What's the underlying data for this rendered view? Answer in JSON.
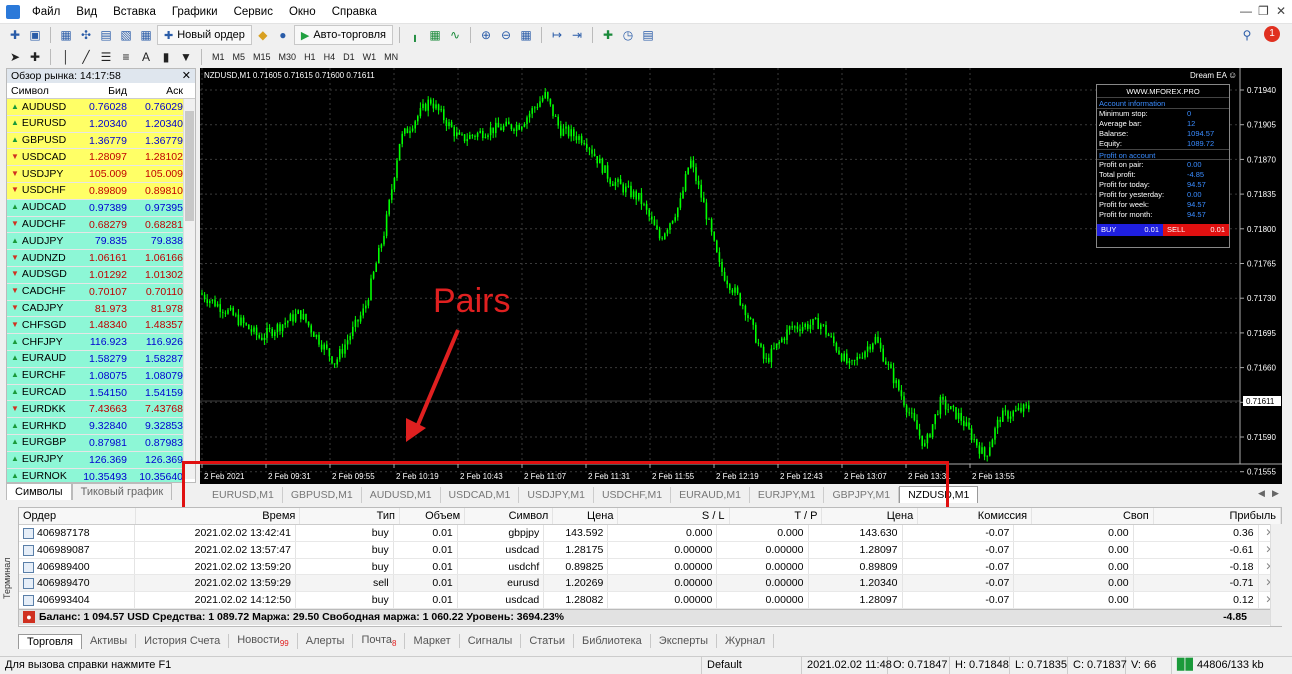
{
  "menu": [
    "Файл",
    "Вид",
    "Вставка",
    "Графики",
    "Сервис",
    "Окно",
    "Справка"
  ],
  "toolbar": {
    "new_order": "Новый ордер",
    "autotrading": "Авто-торговля",
    "timeframes": [
      "M1",
      "M5",
      "M15",
      "M30",
      "H1",
      "H4",
      "D1",
      "W1",
      "MN"
    ]
  },
  "market_watch": {
    "title": "Обзор рынка: 14:17:58",
    "headers": [
      "Символ",
      "Бид",
      "Аск"
    ],
    "rows": [
      {
        "symbol": "AUDUSD",
        "bid": "0.76028",
        "ask": "0.76029",
        "bg": "#ffff66",
        "dir": "up"
      },
      {
        "symbol": "EURUSD",
        "bid": "1.20340",
        "ask": "1.20340",
        "bg": "#ffff66",
        "dir": "up"
      },
      {
        "symbol": "GBPUSD",
        "bid": "1.36779",
        "ask": "1.36779",
        "bg": "#ffff66",
        "dir": "up"
      },
      {
        "symbol": "USDCAD",
        "bid": "1.28097",
        "ask": "1.28102",
        "bg": "#ffff66",
        "dir": "down"
      },
      {
        "symbol": "USDJPY",
        "bid": "105.009",
        "ask": "105.009",
        "bg": "#ffff66",
        "dir": "down"
      },
      {
        "symbol": "USDCHF",
        "bid": "0.89809",
        "ask": "0.89810",
        "bg": "#ffff66",
        "dir": "down"
      },
      {
        "symbol": "AUDCAD",
        "bid": "0.97389",
        "ask": "0.97395",
        "bg": "#8df7d6",
        "dir": "up"
      },
      {
        "symbol": "AUDCHF",
        "bid": "0.68279",
        "ask": "0.68281",
        "bg": "#8df7d6",
        "dir": "down"
      },
      {
        "symbol": "AUDJPY",
        "bid": "79.835",
        "ask": "79.838",
        "bg": "#8df7d6",
        "dir": "up"
      },
      {
        "symbol": "AUDNZD",
        "bid": "1.06161",
        "ask": "1.06166",
        "bg": "#8df7d6",
        "dir": "down"
      },
      {
        "symbol": "AUDSGD",
        "bid": "1.01292",
        "ask": "1.01302",
        "bg": "#8df7d6",
        "dir": "down"
      },
      {
        "symbol": "CADCHF",
        "bid": "0.70107",
        "ask": "0.70110",
        "bg": "#8df7d6",
        "dir": "down"
      },
      {
        "symbol": "CADJPY",
        "bid": "81.973",
        "ask": "81.978",
        "bg": "#8df7d6",
        "dir": "down"
      },
      {
        "symbol": "CHFSGD",
        "bid": "1.48340",
        "ask": "1.48357",
        "bg": "#8df7d6",
        "dir": "down"
      },
      {
        "symbol": "CHFJPY",
        "bid": "116.923",
        "ask": "116.926",
        "bg": "#8df7d6",
        "dir": "up"
      },
      {
        "symbol": "EURAUD",
        "bid": "1.58279",
        "ask": "1.58287",
        "bg": "#8df7d6",
        "dir": "up"
      },
      {
        "symbol": "EURCHF",
        "bid": "1.08075",
        "ask": "1.08079",
        "bg": "#8df7d6",
        "dir": "up"
      },
      {
        "symbol": "EURCAD",
        "bid": "1.54150",
        "ask": "1.54159",
        "bg": "#8df7d6",
        "dir": "up"
      },
      {
        "symbol": "EURDKK",
        "bid": "7.43663",
        "ask": "7.43768",
        "bg": "#8df7d6",
        "dir": "down"
      },
      {
        "symbol": "EURHKD",
        "bid": "9.32840",
        "ask": "9.32853",
        "bg": "#8df7d6",
        "dir": "up"
      },
      {
        "symbol": "EURGBP",
        "bid": "0.87981",
        "ask": "0.87983",
        "bg": "#8df7d6",
        "dir": "up"
      },
      {
        "symbol": "EURJPY",
        "bid": "126.369",
        "ask": "126.369",
        "bg": "#8df7d6",
        "dir": "up"
      },
      {
        "symbol": "EURNOK",
        "bid": "10.35493",
        "ask": "10.35640",
        "bg": "#8df7d6",
        "dir": "up"
      }
    ],
    "tabs": [
      "Символы",
      "Тиковый график"
    ]
  },
  "chart": {
    "header": "NZDUSD,M1  0.71605 0.71615 0.71600 0.71611",
    "ea_label": "Dream EA",
    "price_axis": [
      "0.71940",
      "0.71905",
      "0.71870",
      "0.71835",
      "0.71800",
      "0.71765",
      "0.71730",
      "0.71695",
      "0.71660",
      "0.71625",
      "0.71590",
      "0.71555"
    ],
    "current_price": "0.71611",
    "time_axis": [
      "2 Feb 2021",
      "2 Feb 09:31",
      "2 Feb 09:55",
      "2 Feb 10:19",
      "2 Feb 10:43",
      "2 Feb 11:07",
      "2 Feb 11:31",
      "2 Feb 11:55",
      "2 Feb 12:19",
      "2 Feb 12:43",
      "2 Feb 13:07",
      "2 Feb 13:31",
      "2 Feb 13:55"
    ],
    "annotation": "Pairs",
    "tabs": [
      "EURUSD,M1",
      "GBPUSD,M1",
      "AUDUSD,M1",
      "USDCAD,M1",
      "USDJPY,M1",
      "USDCHF,M1",
      "EURAUD,M1",
      "EURJPY,M1",
      "GBPJPY,M1",
      "NZDUSD,M1"
    ]
  },
  "ea_panel": {
    "site": "WWW.MFOREX.PRO",
    "section1": "Account information",
    "rows1": [
      [
        "Minimum stop:",
        "0"
      ],
      [
        "Average bar:",
        "12"
      ],
      [
        "Balanse:",
        "1094.57"
      ],
      [
        "Equity:",
        "1089.72"
      ]
    ],
    "section2": "Profit on account",
    "rows2": [
      [
        "Profit on pair:",
        "0.00"
      ],
      [
        "Total profit:",
        "-4.85"
      ],
      [
        "Profit for today:",
        "94.57"
      ],
      [
        "Profit for yesterday:",
        "0.00"
      ],
      [
        "Profit for week:",
        "94.57"
      ],
      [
        "Profit for month:",
        "94.57"
      ]
    ],
    "buy_label": "BUY",
    "buy_val": "0.01",
    "sell_label": "SELL",
    "sell_val": "0.01"
  },
  "terminal": {
    "side_label": "Терминал",
    "headers": [
      "Ордер",
      "Время",
      "Тип",
      "Объем",
      "Символ",
      "Цена",
      "S / L",
      "T / P",
      "Цена",
      "Комиссия",
      "Своп",
      "Прибыль"
    ],
    "rows": [
      [
        "406987178",
        "2021.02.02 13:42:41",
        "buy",
        "0.01",
        "gbpjpy",
        "143.592",
        "0.000",
        "0.000",
        "143.630",
        "-0.07",
        "0.00",
        "0.36"
      ],
      [
        "406989087",
        "2021.02.02 13:57:47",
        "buy",
        "0.01",
        "usdcad",
        "1.28175",
        "0.00000",
        "0.00000",
        "1.28097",
        "-0.07",
        "0.00",
        "-0.61"
      ],
      [
        "406989400",
        "2021.02.02 13:59:20",
        "buy",
        "0.01",
        "usdchf",
        "0.89825",
        "0.00000",
        "0.00000",
        "0.89809",
        "-0.07",
        "0.00",
        "-0.18"
      ],
      [
        "406989470",
        "2021.02.02 13:59:29",
        "sell",
        "0.01",
        "eurusd",
        "1.20269",
        "0.00000",
        "0.00000",
        "1.20340",
        "-0.07",
        "0.00",
        "-0.71"
      ],
      [
        "406993404",
        "2021.02.02 14:12:50",
        "buy",
        "0.01",
        "usdcad",
        "1.28082",
        "0.00000",
        "0.00000",
        "1.28097",
        "-0.07",
        "0.00",
        "0.12"
      ]
    ],
    "balance": "Баланс: 1 094.57 USD  Средства: 1 089.72  Маржа: 29.50  Свободная маржа: 1 060.22  Уровень: 3694.23%",
    "total": "-4.85",
    "tabs": [
      {
        "label": "Торговля",
        "badge": ""
      },
      {
        "label": "Активы",
        "badge": ""
      },
      {
        "label": "История Счета",
        "badge": ""
      },
      {
        "label": "Новости",
        "badge": "99"
      },
      {
        "label": "Алерты",
        "badge": ""
      },
      {
        "label": "Почта",
        "badge": "8"
      },
      {
        "label": "Маркет",
        "badge": ""
      },
      {
        "label": "Сигналы",
        "badge": ""
      },
      {
        "label": "Статьи",
        "badge": ""
      },
      {
        "label": "Библиотека",
        "badge": ""
      },
      {
        "label": "Эксперты",
        "badge": ""
      },
      {
        "label": "Журнал",
        "badge": ""
      }
    ]
  },
  "status": {
    "help": "Для вызова справки нажмите F1",
    "profile": "Default",
    "datetime": "2021.02.02 11:48",
    "open": "O: 0.71847",
    "high": "H: 0.71848",
    "low": "L: 0.71835",
    "close": "C: 0.71837",
    "volume": "V: 66",
    "traffic": "44806/133 kb"
  },
  "colors": {
    "candle": "#00ff00",
    "chart_bg": "#000000",
    "annotation": "#e02020",
    "quote_yellow": "#ffff66",
    "quote_green": "#8df7d6"
  }
}
